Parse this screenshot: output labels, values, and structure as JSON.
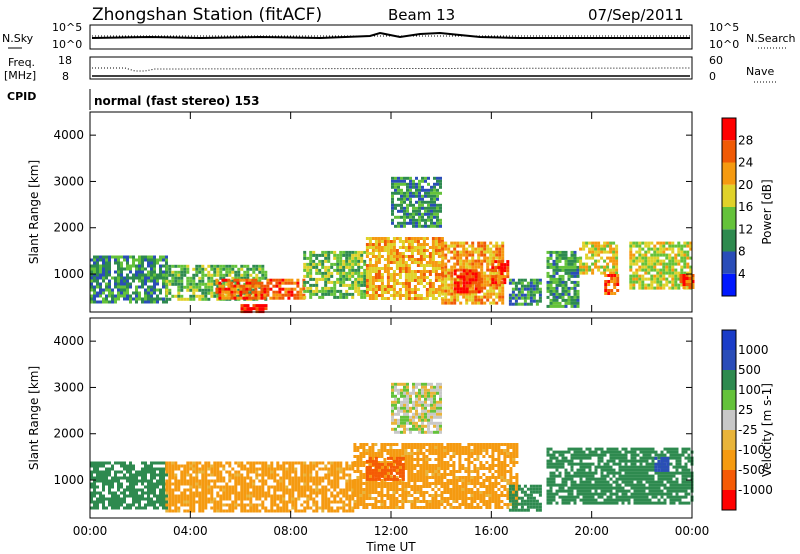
{
  "header": {
    "title": "Zhongshan Station (fitACF)",
    "beam": "Beam 13",
    "date": "07/Sep/2011"
  },
  "top_panels": {
    "noise": {
      "left_label": "N.Sky",
      "right_label": "N.Search",
      "left_ticks": [
        "10^5",
        "10^0"
      ],
      "right_ticks": [
        "10^5",
        "10^0"
      ]
    },
    "freq": {
      "left_label_1": "Freq.",
      "left_label_2": "[MHz]",
      "right_label": "Nave",
      "left_ticks": [
        "18",
        "8"
      ],
      "right_ticks": [
        "60",
        "0"
      ]
    },
    "cpid": {
      "label": "CPID",
      "text": "normal (fast stereo) 153"
    }
  },
  "colors": {
    "power_scale": [
      "#0018ff",
      "#2a4db8",
      "#2e8a4f",
      "#64c23a",
      "#e0d22a",
      "#f59a10",
      "#f05a05",
      "#ff0000"
    ],
    "velocity_scale": [
      "#ff0000",
      "#f55a05",
      "#f59a10",
      "#e8b43a",
      "#c8c8c8",
      "#64c23a",
      "#2e8a4f",
      "#2a4db8",
      "#1a3cc8"
    ]
  },
  "chart_data": [
    {
      "type": "heatmap",
      "name": "power",
      "ylabel": "Slant Range [km]",
      "ylim": [
        180,
        4500
      ],
      "yticks": [
        "1000",
        "2000",
        "3000",
        "4000"
      ],
      "xlim": [
        0,
        24
      ],
      "colorbar_label": "Power [dB]",
      "colorbar_ticks": [
        "4",
        "8",
        "12",
        "16",
        "20",
        "24",
        "28"
      ],
      "colorbar_range": [
        0,
        32
      ],
      "regions": [
        {
          "t0": 0.0,
          "t1": 3.0,
          "r0": 400,
          "r1": 1400,
          "value": 10
        },
        {
          "t0": 3.0,
          "t1": 7.0,
          "r0": 450,
          "r1": 1200,
          "value": 13
        },
        {
          "t0": 5.0,
          "t1": 8.5,
          "r0": 500,
          "r1": 900,
          "value": 25
        },
        {
          "t0": 6.0,
          "t1": 7.0,
          "r0": 200,
          "r1": 350,
          "value": 29
        },
        {
          "t0": 8.5,
          "t1": 11.0,
          "r0": 500,
          "r1": 1500,
          "value": 14
        },
        {
          "t0": 11.0,
          "t1": 14.0,
          "r0": 450,
          "r1": 1800,
          "value": 21
        },
        {
          "t0": 14.0,
          "t1": 16.5,
          "r0": 400,
          "r1": 1700,
          "value": 22
        },
        {
          "t0": 14.5,
          "t1": 15.5,
          "r0": 600,
          "r1": 1100,
          "value": 29
        },
        {
          "t0": 16.0,
          "t1": 16.7,
          "r0": 800,
          "r1": 1300,
          "value": 27
        },
        {
          "t0": 12.0,
          "t1": 14.0,
          "r0": 2000,
          "r1": 3100,
          "value": 10
        },
        {
          "t0": 16.7,
          "t1": 18.0,
          "r0": 350,
          "r1": 900,
          "value": 10
        },
        {
          "t0": 18.2,
          "t1": 19.5,
          "r0": 300,
          "r1": 1500,
          "value": 11
        },
        {
          "t0": 19.5,
          "t1": 21.0,
          "r0": 1000,
          "r1": 1700,
          "value": 19
        },
        {
          "t0": 20.5,
          "t1": 21.0,
          "r0": 600,
          "r1": 1000,
          "value": 26
        },
        {
          "t0": 21.5,
          "t1": 24.0,
          "r0": 700,
          "r1": 1700,
          "value": 17
        },
        {
          "t0": 23.5,
          "t1": 24.0,
          "r0": 700,
          "r1": 1000,
          "value": 26
        }
      ]
    },
    {
      "type": "heatmap",
      "name": "velocity",
      "ylabel": "Slant Range [km]",
      "ylim": [
        180,
        4500
      ],
      "yticks": [
        "1000",
        "2000",
        "3000",
        "4000"
      ],
      "xlim": [
        0,
        24
      ],
      "xlabel": "Time UT",
      "xticks": [
        "00:00",
        "04:00",
        "08:00",
        "12:00",
        "16:00",
        "20:00",
        "00:00"
      ],
      "colorbar_label": "Velocity [m s-1]",
      "colorbar_ticks": [
        "1000",
        "500",
        "100",
        "25",
        "-25",
        "-100",
        "-500",
        "-1000"
      ],
      "regions": [
        {
          "t0": 0.0,
          "t1": 3.0,
          "r0": 400,
          "r1": 1400,
          "value": 200
        },
        {
          "t0": 3.0,
          "t1": 10.5,
          "r0": 300,
          "r1": 1400,
          "value": -150
        },
        {
          "t0": 10.5,
          "t1": 17.0,
          "r0": 400,
          "r1": 1800,
          "value": -150
        },
        {
          "t0": 11.0,
          "t1": 12.5,
          "r0": 1000,
          "r1": 1500,
          "value": -600
        },
        {
          "t0": 12.0,
          "t1": 14.0,
          "r0": 2000,
          "r1": 3100,
          "value": 0
        },
        {
          "t0": 16.7,
          "t1": 18.0,
          "r0": 350,
          "r1": 900,
          "value": 200
        },
        {
          "t0": 18.2,
          "t1": 24.0,
          "r0": 500,
          "r1": 1700,
          "value": 200
        },
        {
          "t0": 22.5,
          "t1": 23.0,
          "r0": 1200,
          "r1": 1500,
          "value": 800
        }
      ]
    }
  ]
}
